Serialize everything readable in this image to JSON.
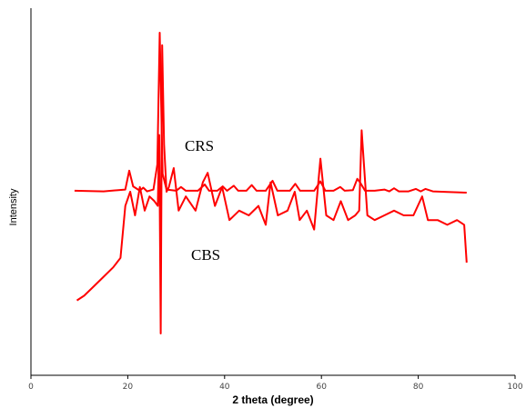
{
  "chart_data": {
    "type": "line",
    "xlabel": "2 theta (degree)",
    "ylabel": "Intensity",
    "xlim": [
      0,
      100
    ],
    "x_ticks": [
      "0",
      "20",
      "40",
      "60",
      "80",
      "100"
    ],
    "y_ticks_labeled": false,
    "grid": false,
    "legend": "none",
    "colors": {
      "line": "#ff0000",
      "axis": "#000000"
    },
    "series": [
      {
        "name": "CRS",
        "x": [
          9,
          15,
          19.5,
          20.3,
          21.1,
          22.5,
          23.2,
          24,
          25.3,
          26.1,
          26.6,
          27.2,
          28,
          30,
          31,
          32,
          34.5,
          35.9,
          36.8,
          38.5,
          39.6,
          40.5,
          41.9,
          42.8,
          44.5,
          45.6,
          46.6,
          48.5,
          49.9,
          50.9,
          53.5,
          54.6,
          55.6,
          58.5,
          59.8,
          60.8,
          62.5,
          63.9,
          64.8,
          66.5,
          67.4,
          68.1,
          69,
          71,
          73,
          74,
          75,
          76,
          78,
          79.5,
          80.5,
          81.5,
          83,
          86,
          90
        ],
        "y": [
          0.3,
          0.2,
          0.5,
          3.5,
          1.0,
          0.3,
          0.8,
          0.2,
          0.5,
          4.5,
          25.5,
          3.0,
          0.5,
          0.3,
          0.9,
          0.3,
          0.3,
          1.3,
          0.3,
          0.3,
          1.0,
          0.3,
          1.1,
          0.3,
          0.3,
          1.2,
          0.3,
          0.3,
          1.9,
          0.3,
          0.3,
          1.4,
          0.3,
          0.3,
          1.8,
          0.3,
          0.3,
          0.9,
          0.3,
          0.4,
          2.2,
          1.5,
          0.3,
          0.3,
          0.5,
          0.2,
          0.7,
          0.2,
          0.2,
          0.6,
          0.2,
          0.6,
          0.2,
          0.1,
          0.0
        ]
      },
      {
        "name": "CBS",
        "x": [
          9.5,
          11,
          13,
          15,
          17,
          18.5,
          19.5,
          20.5,
          21.5,
          22.5,
          23.5,
          24.5,
          25.5,
          26.2,
          26.5,
          26.8,
          27.1,
          27.5,
          28,
          28.5,
          29.5,
          30.5,
          32,
          34,
          35.5,
          36.5,
          38,
          39.5,
          41,
          43,
          45,
          47,
          48.5,
          49.5,
          51,
          53,
          54.5,
          55.5,
          57,
          58.5,
          59.8,
          61,
          62.5,
          64,
          65.5,
          67,
          67.8,
          68.3,
          69.5,
          71,
          73,
          75,
          77,
          79,
          80.8,
          82,
          84,
          86,
          88,
          89.5,
          90
        ],
        "y": [
          12,
          13,
          15,
          17,
          19,
          21,
          32,
          35,
          30,
          36,
          31,
          34,
          33,
          32,
          47,
          5,
          66,
          45,
          35,
          36,
          40,
          31,
          34,
          31,
          37,
          39,
          32,
          36,
          29,
          31,
          30,
          32,
          28,
          37,
          30,
          31,
          35,
          29,
          31,
          27,
          42,
          30,
          29,
          33,
          29,
          30,
          31,
          48,
          30,
          29,
          30,
          31,
          30,
          30,
          34,
          29,
          29,
          28,
          29,
          28,
          20
        ]
      }
    ]
  }
}
